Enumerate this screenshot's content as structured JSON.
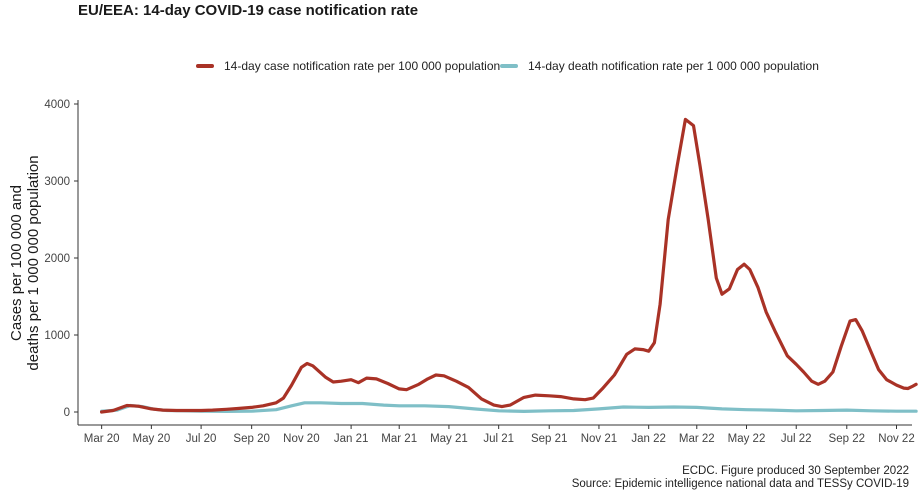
{
  "chart_data": {
    "type": "line",
    "title": "EU/EEA: 14-day COVID-19 case notification rate",
    "ylabel_lines": [
      "Cases per 100 000 and",
      "deaths per 1 000 000 population"
    ],
    "xlabel": "",
    "x_ticks": [
      "Mar 20",
      "May 20",
      "Jul 20",
      "Sep 20",
      "Nov 20",
      "Jan 21",
      "Mar 21",
      "May 21",
      "Jul 21",
      "Sep 21",
      "Nov 21",
      "Jan 22",
      "Mar 22",
      "May 22",
      "Jul 22",
      "Sep 22",
      "Nov 22"
    ],
    "y_ticks": [
      0,
      1000,
      2000,
      3000,
      4000
    ],
    "ylim": [
      0,
      4000
    ],
    "xlim": [
      "2020-02-01",
      "2022-11-20"
    ],
    "grid": false,
    "legend_position": "top",
    "series": [
      {
        "name": "14-day case notification rate per 100 000 population",
        "color": "#a93226",
        "points": [
          [
            "2020-03-01",
            0
          ],
          [
            "2020-03-15",
            20
          ],
          [
            "2020-04-01",
            85
          ],
          [
            "2020-04-15",
            75
          ],
          [
            "2020-05-01",
            40
          ],
          [
            "2020-05-15",
            25
          ],
          [
            "2020-06-01",
            20
          ],
          [
            "2020-06-15",
            20
          ],
          [
            "2020-07-01",
            20
          ],
          [
            "2020-07-15",
            25
          ],
          [
            "2020-08-01",
            35
          ],
          [
            "2020-08-15",
            45
          ],
          [
            "2020-09-01",
            60
          ],
          [
            "2020-09-15",
            80
          ],
          [
            "2020-10-01",
            120
          ],
          [
            "2020-10-10",
            180
          ],
          [
            "2020-10-20",
            350
          ],
          [
            "2020-11-01",
            580
          ],
          [
            "2020-11-08",
            630
          ],
          [
            "2020-11-15",
            600
          ],
          [
            "2020-12-01",
            450
          ],
          [
            "2020-12-10",
            390
          ],
          [
            "2020-12-20",
            400
          ],
          [
            "2021-01-01",
            420
          ],
          [
            "2021-01-10",
            380
          ],
          [
            "2021-01-20",
            440
          ],
          [
            "2021-02-01",
            430
          ],
          [
            "2021-02-15",
            370
          ],
          [
            "2021-03-01",
            300
          ],
          [
            "2021-03-10",
            290
          ],
          [
            "2021-03-25",
            360
          ],
          [
            "2021-04-05",
            430
          ],
          [
            "2021-04-15",
            480
          ],
          [
            "2021-04-25",
            470
          ],
          [
            "2021-05-10",
            400
          ],
          [
            "2021-05-25",
            320
          ],
          [
            "2021-06-10",
            170
          ],
          [
            "2021-06-25",
            90
          ],
          [
            "2021-07-05",
            70
          ],
          [
            "2021-07-15",
            90
          ],
          [
            "2021-08-01",
            190
          ],
          [
            "2021-08-15",
            220
          ],
          [
            "2021-09-01",
            210
          ],
          [
            "2021-09-15",
            200
          ],
          [
            "2021-10-01",
            170
          ],
          [
            "2021-10-15",
            160
          ],
          [
            "2021-10-25",
            180
          ],
          [
            "2021-11-05",
            300
          ],
          [
            "2021-11-20",
            480
          ],
          [
            "2021-12-05",
            750
          ],
          [
            "2021-12-15",
            820
          ],
          [
            "2021-12-25",
            810
          ],
          [
            "2022-01-01",
            790
          ],
          [
            "2022-01-08",
            900
          ],
          [
            "2022-01-15",
            1400
          ],
          [
            "2022-01-25",
            2500
          ],
          [
            "2022-02-05",
            3200
          ],
          [
            "2022-02-15",
            3800
          ],
          [
            "2022-02-25",
            3720
          ],
          [
            "2022-03-05",
            3200
          ],
          [
            "2022-03-15",
            2500
          ],
          [
            "2022-03-25",
            1740
          ],
          [
            "2022-04-01",
            1530
          ],
          [
            "2022-04-10",
            1600
          ],
          [
            "2022-04-20",
            1850
          ],
          [
            "2022-04-28",
            1920
          ],
          [
            "2022-05-05",
            1850
          ],
          [
            "2022-05-15",
            1620
          ],
          [
            "2022-05-25",
            1300
          ],
          [
            "2022-06-05",
            1050
          ],
          [
            "2022-06-20",
            730
          ],
          [
            "2022-07-01",
            620
          ],
          [
            "2022-07-10",
            520
          ],
          [
            "2022-07-20",
            400
          ],
          [
            "2022-07-28",
            360
          ],
          [
            "2022-08-05",
            400
          ],
          [
            "2022-08-15",
            520
          ],
          [
            "2022-08-25",
            850
          ],
          [
            "2022-09-05",
            1180
          ],
          [
            "2022-09-12",
            1200
          ],
          [
            "2022-09-20",
            1050
          ],
          [
            "2022-09-30",
            800
          ],
          [
            "2022-10-10",
            550
          ],
          [
            "2022-10-20",
            420
          ],
          [
            "2022-11-01",
            350
          ],
          [
            "2022-11-10",
            310
          ],
          [
            "2022-11-15",
            305
          ],
          [
            "2022-11-20",
            330
          ],
          [
            "2022-11-25",
            360
          ]
        ]
      },
      {
        "name": "14-day death notification rate per 1 000 000 population",
        "color": "#7fbfc7",
        "points": [
          [
            "2020-03-01",
            10
          ],
          [
            "2020-03-20",
            25
          ],
          [
            "2020-04-05",
            85
          ],
          [
            "2020-04-20",
            70
          ],
          [
            "2020-05-05",
            35
          ],
          [
            "2020-05-20",
            20
          ],
          [
            "2020-06-10",
            15
          ],
          [
            "2020-07-01",
            10
          ],
          [
            "2020-08-01",
            8
          ],
          [
            "2020-09-01",
            10
          ],
          [
            "2020-10-01",
            30
          ],
          [
            "2020-10-20",
            80
          ],
          [
            "2020-11-05",
            120
          ],
          [
            "2020-11-25",
            120
          ],
          [
            "2020-12-20",
            110
          ],
          [
            "2021-01-15",
            110
          ],
          [
            "2021-02-10",
            90
          ],
          [
            "2021-03-01",
            80
          ],
          [
            "2021-04-01",
            80
          ],
          [
            "2021-05-01",
            70
          ],
          [
            "2021-06-01",
            40
          ],
          [
            "2021-07-01",
            15
          ],
          [
            "2021-08-01",
            8
          ],
          [
            "2021-09-01",
            15
          ],
          [
            "2021-10-01",
            20
          ],
          [
            "2021-11-01",
            40
          ],
          [
            "2021-12-01",
            65
          ],
          [
            "2022-01-01",
            60
          ],
          [
            "2022-02-01",
            65
          ],
          [
            "2022-03-01",
            60
          ],
          [
            "2022-04-01",
            40
          ],
          [
            "2022-05-01",
            30
          ],
          [
            "2022-06-01",
            25
          ],
          [
            "2022-07-01",
            15
          ],
          [
            "2022-08-01",
            20
          ],
          [
            "2022-09-01",
            25
          ],
          [
            "2022-10-01",
            15
          ],
          [
            "2022-11-01",
            10
          ],
          [
            "2022-11-25",
            10
          ]
        ]
      }
    ]
  },
  "caption": {
    "line1": "ECDC. Figure produced 30 September 2022",
    "line2": "Source: Epidemic intelligence national data and TESSy COVID-19"
  }
}
